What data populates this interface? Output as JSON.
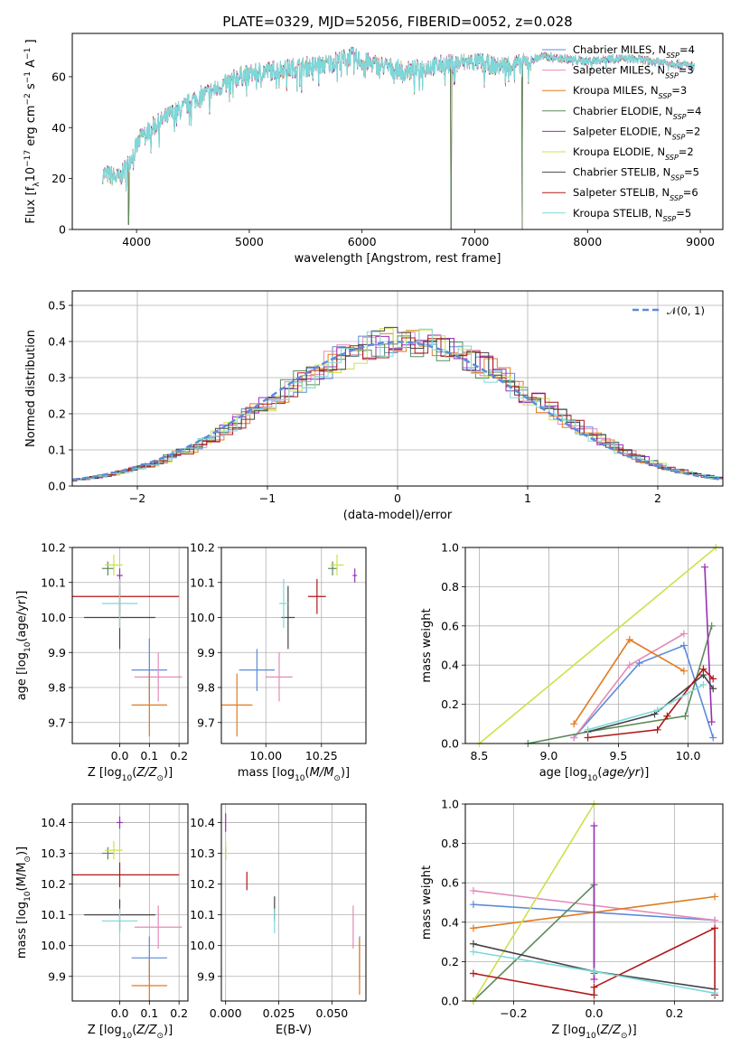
{
  "title": "PLATE=0329, MJD=52056, FIBERID=0052, z=0.028",
  "colors": {
    "chabrier_miles": "#5b8bd9",
    "salpeter_miles": "#e48ab8",
    "kroupa_miles": "#e07b20",
    "chabrier_elodie": "#5b8a5b",
    "salpeter_elodie": "#9a2fb3",
    "kroupa_elodie": "#cfe04a",
    "chabrier_stelib": "#444444",
    "salpeter_stelib": "#b01818",
    "kroupa_stelib": "#7fd8d8",
    "normal": "#5b8bd9"
  },
  "legend_spectrum": [
    {
      "label": "Chabrier MILES, N",
      "sub": "SSP",
      "tail": "=4",
      "color": "chabrier_miles"
    },
    {
      "label": "Salpeter MILES, N",
      "sub": "SSP",
      "tail": "=3",
      "color": "salpeter_miles"
    },
    {
      "label": "Kroupa MILES, N",
      "sub": "SSP",
      "tail": "=3",
      "color": "kroupa_miles"
    },
    {
      "label": "Chabrier ELODIE, N",
      "sub": "SSP",
      "tail": "=4",
      "color": "chabrier_elodie"
    },
    {
      "label": "Salpeter ELODIE, N",
      "sub": "SSP",
      "tail": "=2",
      "color": "salpeter_elodie"
    },
    {
      "label": "Kroupa ELODIE, N",
      "sub": "SSP",
      "tail": "=2",
      "color": "kroupa_elodie"
    },
    {
      "label": "Chabrier STELIB, N",
      "sub": "SSP",
      "tail": "=5",
      "color": "chabrier_stelib"
    },
    {
      "label": "Salpeter STELIB, N",
      "sub": "SSP",
      "tail": "=6",
      "color": "salpeter_stelib"
    },
    {
      "label": "Kroupa STELIB, N",
      "sub": "SSP",
      "tail": "=5",
      "color": "kroupa_stelib"
    }
  ],
  "legend_hist": {
    "label": "𝒩(0, 1)"
  },
  "chart_data": [
    {
      "id": "spectrum",
      "type": "line",
      "xlabel": "wavelength [Angstrom, rest frame]",
      "ylabel": "Flux [f",
      "ylabel_parts": [
        "Flux [f",
        "λ",
        "10",
        "−17",
        "erg cm",
        "−2",
        "s",
        "−1",
        "A",
        "−1",
        "]"
      ],
      "xlim": [
        3430,
        9200
      ],
      "ylim": [
        0,
        77
      ],
      "xticks": [
        4000,
        5000,
        6000,
        7000,
        8000,
        9000
      ],
      "yticks": [
        0,
        20,
        40,
        60
      ],
      "continuum": [
        [
          3700,
          22
        ],
        [
          3850,
          20
        ],
        [
          3950,
          28
        ],
        [
          4050,
          37
        ],
        [
          4200,
          42
        ],
        [
          4300,
          45
        ],
        [
          4400,
          47
        ],
        [
          4500,
          51
        ],
        [
          4700,
          55
        ],
        [
          4900,
          60
        ],
        [
          5100,
          62
        ],
        [
          5300,
          63
        ],
        [
          5500,
          64
        ],
        [
          5700,
          65
        ],
        [
          5900,
          68
        ],
        [
          6000,
          66
        ],
        [
          6200,
          64
        ],
        [
          6400,
          62
        ],
        [
          6600,
          64
        ],
        [
          6800,
          65
        ],
        [
          7000,
          66
        ],
        [
          7200,
          64
        ],
        [
          7400,
          65
        ],
        [
          7600,
          68
        ],
        [
          7800,
          67
        ],
        [
          8000,
          66
        ],
        [
          8200,
          67
        ],
        [
          8400,
          67
        ],
        [
          8600,
          66
        ],
        [
          8800,
          65
        ],
        [
          8950,
          64
        ]
      ],
      "dips": [
        [
          3930,
          2
        ],
        [
          6790,
          0
        ],
        [
          7420,
          0
        ]
      ]
    },
    {
      "id": "residuals",
      "type": "bar",
      "xlabel": "(data-model)/error",
      "ylabel": "Normed distribution",
      "xlim": [
        -2.5,
        2.5
      ],
      "ylim": [
        0,
        0.54
      ],
      "xticks": [
        -2,
        -1,
        0,
        1,
        2
      ],
      "yticks": [
        0.0,
        0.1,
        0.2,
        0.3,
        0.4,
        0.5
      ],
      "bin_width": 0.1
    },
    {
      "id": "age_vs_Z",
      "type": "scatter",
      "xlabel": "Z [log",
      "ylabel": "age  [log",
      "xlim": [
        -0.16,
        0.23
      ],
      "ylim": [
        9.64,
        10.2
      ],
      "xticks": [
        0.0,
        0.1,
        0.2
      ],
      "yticks": [
        9.7,
        9.8,
        9.9,
        10.0,
        10.1,
        10.2
      ],
      "points": [
        {
          "c": "chabrier_miles",
          "x": 0.1,
          "y": 9.85,
          "xe": 0.06,
          "ye": 0.09
        },
        {
          "c": "salpeter_miles",
          "x": 0.13,
          "y": 9.83,
          "xe": 0.08,
          "ye": 0.07
        },
        {
          "c": "kroupa_miles",
          "x": 0.1,
          "y": 9.75,
          "xe": 0.06,
          "ye": 0.09
        },
        {
          "c": "chabrier_elodie",
          "x": -0.04,
          "y": 10.14,
          "xe": 0.02,
          "ye": 0.02
        },
        {
          "c": "salpeter_elodie",
          "x": 0.0,
          "y": 10.12,
          "xe": 0.01,
          "ye": 0.02
        },
        {
          "c": "kroupa_elodie",
          "x": -0.02,
          "y": 10.15,
          "xe": 0.03,
          "ye": 0.03
        },
        {
          "c": "chabrier_stelib",
          "x": 0.0,
          "y": 10.0,
          "xe": 0.12,
          "ye": 0.09
        },
        {
          "c": "salpeter_stelib",
          "x": 0.0,
          "y": 10.06,
          "xe": 0.2,
          "ye": 0.05
        },
        {
          "c": "kroupa_stelib",
          "x": 0.0,
          "y": 10.04,
          "xe": 0.06,
          "ye": 0.07
        }
      ]
    },
    {
      "id": "age_vs_mass",
      "type": "scatter",
      "xlabel": "mass [log",
      "ylabel": "",
      "xlim": [
        9.8,
        10.45
      ],
      "ylim": [
        9.64,
        10.2
      ],
      "xticks": [
        10.0,
        10.25
      ],
      "yticks": [
        9.7,
        9.8,
        9.9,
        10.0,
        10.1,
        10.2
      ],
      "points": [
        {
          "c": "chabrier_miles",
          "x": 9.96,
          "y": 9.85,
          "xe": 0.08,
          "ye": 0.06
        },
        {
          "c": "salpeter_miles",
          "x": 10.06,
          "y": 9.83,
          "xe": 0.06,
          "ye": 0.07
        },
        {
          "c": "kroupa_miles",
          "x": 9.87,
          "y": 9.75,
          "xe": 0.07,
          "ye": 0.09
        },
        {
          "c": "chabrier_elodie",
          "x": 10.3,
          "y": 10.14,
          "xe": 0.02,
          "ye": 0.02
        },
        {
          "c": "salpeter_elodie",
          "x": 10.4,
          "y": 10.12,
          "xe": 0.01,
          "ye": 0.02
        },
        {
          "c": "kroupa_elodie",
          "x": 10.32,
          "y": 10.15,
          "xe": 0.03,
          "ye": 0.03
        },
        {
          "c": "chabrier_stelib",
          "x": 10.1,
          "y": 10.0,
          "xe": 0.03,
          "ye": 0.09
        },
        {
          "c": "salpeter_stelib",
          "x": 10.23,
          "y": 10.06,
          "xe": 0.04,
          "ye": 0.05
        },
        {
          "c": "kroupa_stelib",
          "x": 10.08,
          "y": 10.04,
          "xe": 0.02,
          "ye": 0.07
        }
      ]
    },
    {
      "id": "weight_vs_age",
      "type": "line",
      "xlabel": "age  [log",
      "ylabel": "mass weight",
      "xlim": [
        8.4,
        10.25
      ],
      "ylim": [
        0,
        1
      ],
      "xticks": [
        8.5,
        9.0,
        9.5,
        10.0
      ],
      "yticks": [
        0.0,
        0.2,
        0.4,
        0.6,
        0.8,
        1.0
      ],
      "series": [
        {
          "c": "chabrier_miles",
          "pts": [
            [
              9.18,
              0.03
            ],
            [
              9.65,
              0.41
            ],
            [
              9.97,
              0.5
            ],
            [
              10.18,
              0.03
            ]
          ]
        },
        {
          "c": "salpeter_miles",
          "pts": [
            [
              9.18,
              0.03
            ],
            [
              9.58,
              0.4
            ],
            [
              9.97,
              0.56
            ]
          ]
        },
        {
          "c": "kroupa_miles",
          "pts": [
            [
              9.18,
              0.1
            ],
            [
              9.58,
              0.53
            ],
            [
              9.97,
              0.37
            ]
          ]
        },
        {
          "c": "chabrier_elodie",
          "pts": [
            [
              8.85,
              0.0
            ],
            [
              9.28,
              0.06
            ],
            [
              9.98,
              0.14
            ],
            [
              10.17,
              0.6
            ]
          ]
        },
        {
          "c": "salpeter_elodie",
          "pts": [
            [
              10.12,
              0.9
            ],
            [
              10.17,
              0.11
            ]
          ]
        },
        {
          "c": "kroupa_elodie",
          "pts": [
            [
              8.5,
              0.0
            ],
            [
              10.2,
              1.0
            ]
          ]
        },
        {
          "c": "chabrier_stelib",
          "pts": [
            [
              9.28,
              0.06
            ],
            [
              9.76,
              0.15
            ],
            [
              10.11,
              0.35
            ],
            [
              10.18,
              0.28
            ]
          ]
        },
        {
          "c": "salpeter_stelib",
          "pts": [
            [
              9.28,
              0.03
            ],
            [
              9.78,
              0.07
            ],
            [
              9.85,
              0.14
            ],
            [
              10.11,
              0.38
            ],
            [
              10.18,
              0.33
            ]
          ]
        },
        {
          "c": "kroupa_stelib",
          "pts": [
            [
              9.28,
              0.07
            ],
            [
              9.78,
              0.17
            ],
            [
              10.11,
              0.3
            ]
          ]
        }
      ]
    },
    {
      "id": "mass_vs_Z",
      "type": "scatter",
      "xlabel": "Z [log",
      "ylabel": "mass [log",
      "xlim": [
        -0.16,
        0.23
      ],
      "ylim": [
        9.82,
        10.46
      ],
      "xticks": [
        0.0,
        0.1,
        0.2
      ],
      "yticks": [
        9.9,
        10.0,
        10.1,
        10.2,
        10.3,
        10.4
      ],
      "points": [
        {
          "c": "chabrier_miles",
          "x": 0.1,
          "y": 9.96,
          "xe": 0.06,
          "ye": 0.07
        },
        {
          "c": "salpeter_miles",
          "x": 0.13,
          "y": 10.06,
          "xe": 0.08,
          "ye": 0.07
        },
        {
          "c": "kroupa_miles",
          "x": 0.1,
          "y": 9.87,
          "xe": 0.06,
          "ye": 0.09
        },
        {
          "c": "chabrier_elodie",
          "x": -0.04,
          "y": 10.3,
          "xe": 0.02,
          "ye": 0.02
        },
        {
          "c": "salpeter_elodie",
          "x": 0.0,
          "y": 10.4,
          "xe": 0.01,
          "ye": 0.02
        },
        {
          "c": "kroupa_elodie",
          "x": -0.02,
          "y": 10.31,
          "xe": 0.03,
          "ye": 0.03
        },
        {
          "c": "chabrier_stelib",
          "x": 0.0,
          "y": 10.1,
          "xe": 0.12,
          "ye": 0.05
        },
        {
          "c": "salpeter_stelib",
          "x": 0.0,
          "y": 10.23,
          "xe": 0.2,
          "ye": 0.04
        },
        {
          "c": "kroupa_stelib",
          "x": 0.0,
          "y": 10.08,
          "xe": 0.06,
          "ye": 0.04
        }
      ]
    },
    {
      "id": "mass_vs_ebv",
      "type": "scatter",
      "xlabel": "E(B-V)",
      "ylabel": "",
      "xlim": [
        -0.002,
        0.066
      ],
      "ylim": [
        9.82,
        10.46
      ],
      "xticks": [
        0.0,
        0.025,
        0.05
      ],
      "yticks": [
        9.9,
        10.0,
        10.1,
        10.2,
        10.3,
        10.4
      ],
      "points": [
        {
          "c": "chabrier_miles",
          "x": 0.063,
          "y": 9.96,
          "xe": 0,
          "ye": 0.07
        },
        {
          "c": "salpeter_miles",
          "x": 0.06,
          "y": 10.06,
          "xe": 0,
          "ye": 0.07
        },
        {
          "c": "kroupa_miles",
          "x": 0.063,
          "y": 9.93,
          "xe": 0,
          "ye": 0.09
        },
        {
          "c": "chabrier_elodie",
          "x": 0.0,
          "y": 10.3,
          "xe": 0,
          "ye": 0.02
        },
        {
          "c": "salpeter_elodie",
          "x": 0.0,
          "y": 10.4,
          "xe": 0,
          "ye": 0.03
        },
        {
          "c": "kroupa_elodie",
          "x": 0.0,
          "y": 10.31,
          "xe": 0,
          "ye": 0.03
        },
        {
          "c": "chabrier_stelib",
          "x": 0.023,
          "y": 10.12,
          "xe": 0,
          "ye": 0.04
        },
        {
          "c": "salpeter_stelib",
          "x": 0.01,
          "y": 10.21,
          "xe": 0,
          "ye": 0.03
        },
        {
          "c": "kroupa_stelib",
          "x": 0.023,
          "y": 10.08,
          "xe": 0,
          "ye": 0.04
        }
      ]
    },
    {
      "id": "weight_vs_Z",
      "type": "line",
      "xlabel": "Z [log",
      "ylabel": "mass weight",
      "xlim": [
        -0.32,
        0.32
      ],
      "ylim": [
        0,
        1
      ],
      "xticks": [
        -0.2,
        0.0,
        0.2
      ],
      "yticks": [
        0.0,
        0.2,
        0.4,
        0.6,
        0.8,
        1.0
      ],
      "series": [
        {
          "c": "chabrier_miles",
          "pts": [
            [
              -0.3,
              0.49
            ],
            [
              0.3,
              0.41
            ]
          ]
        },
        {
          "c": "salpeter_miles",
          "pts": [
            [
              -0.3,
              0.56
            ],
            [
              0.3,
              0.41
            ]
          ]
        },
        {
          "c": "kroupa_miles",
          "pts": [
            [
              -0.3,
              0.37
            ],
            [
              0.3,
              0.53
            ]
          ]
        },
        {
          "c": "chabrier_elodie",
          "pts": [
            [
              -0.3,
              0.0
            ],
            [
              0.0,
              0.59
            ],
            [
              0.0,
              0.14
            ]
          ]
        },
        {
          "c": "salpeter_elodie",
          "pts": [
            [
              0.0,
              0.89
            ],
            [
              0.0,
              0.11
            ]
          ]
        },
        {
          "c": "kroupa_elodie",
          "pts": [
            [
              -0.3,
              0.0
            ],
            [
              0.0,
              1.0
            ]
          ]
        },
        {
          "c": "chabrier_stelib",
          "pts": [
            [
              -0.3,
              0.29
            ],
            [
              0.0,
              0.15
            ],
            [
              0.3,
              0.06
            ]
          ]
        },
        {
          "c": "salpeter_stelib",
          "pts": [
            [
              -0.3,
              0.14
            ],
            [
              0.0,
              0.03
            ],
            [
              0.0,
              0.07
            ],
            [
              0.3,
              0.37
            ],
            [
              0.3,
              0.03
            ]
          ]
        },
        {
          "c": "kroupa_stelib",
          "pts": [
            [
              -0.3,
              0.25
            ],
            [
              0.0,
              0.15
            ],
            [
              0.3,
              0.04
            ]
          ]
        }
      ]
    }
  ]
}
